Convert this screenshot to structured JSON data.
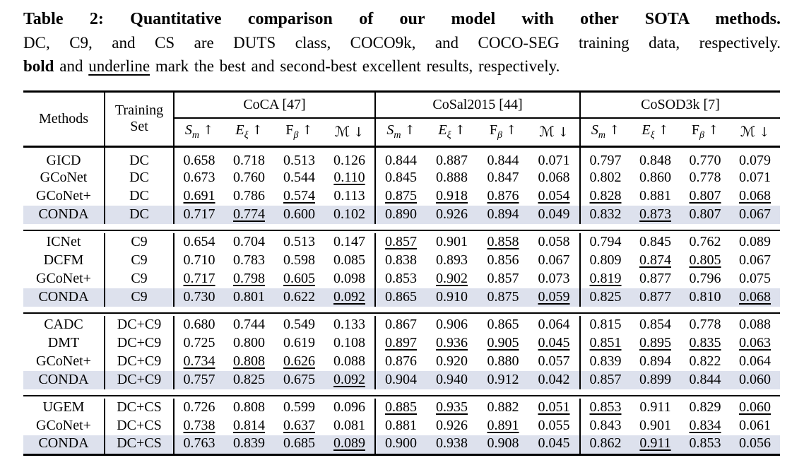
{
  "caption": {
    "line1": "Table 2: Quantitative comparison of our model with other SOTA methods.",
    "line2": "DC, C9, and CS are DUTS class, COCO9k, and COCO-SEG training data, respectively.",
    "line3_parts": [
      {
        "text": "bold",
        "style": "b"
      },
      {
        "text": " and ",
        "style": "n"
      },
      {
        "text": "underline",
        "style": "u"
      },
      {
        "text": " mark the best and second-best excellent results, respectively.",
        "style": "n"
      }
    ]
  },
  "table": {
    "methods_label": "Methods",
    "training_label_lines": [
      "Training",
      "Set"
    ],
    "datasets": [
      "CoCA [47]",
      "CoSal2015 [44]",
      "CoSOD3k [7]"
    ],
    "metrics": [
      {
        "sym": "S",
        "sub": "m",
        "italic": true,
        "arrow": "↑"
      },
      {
        "sym": "E",
        "sub": "ξ",
        "italic": true,
        "arrow": "↑"
      },
      {
        "sym": "F",
        "sub": "β",
        "italic": false,
        "arrow": "↑"
      },
      {
        "sym": "ℳ",
        "sub": "",
        "italic": false,
        "arrow": "↓"
      }
    ],
    "highlight_color": "#dde1ed",
    "groups": [
      {
        "rows": [
          {
            "method": "GICD",
            "training": "DC",
            "emph": false,
            "values": [
              [
                "0.658",
                "n"
              ],
              [
                "0.718",
                "n"
              ],
              [
                "0.513",
                "n"
              ],
              [
                "0.126",
                "n"
              ],
              [
                "0.844",
                "n"
              ],
              [
                "0.887",
                "n"
              ],
              [
                "0.844",
                "n"
              ],
              [
                "0.071",
                "n"
              ],
              [
                "0.797",
                "n"
              ],
              [
                "0.848",
                "n"
              ],
              [
                "0.770",
                "n"
              ],
              [
                "0.079",
                "n"
              ]
            ]
          },
          {
            "method": "GCoNet",
            "training": "DC",
            "emph": false,
            "values": [
              [
                "0.673",
                "n"
              ],
              [
                "0.760",
                "n"
              ],
              [
                "0.544",
                "n"
              ],
              [
                "0.110",
                "u"
              ],
              [
                "0.845",
                "n"
              ],
              [
                "0.888",
                "n"
              ],
              [
                "0.847",
                "n"
              ],
              [
                "0.068",
                "n"
              ],
              [
                "0.802",
                "n"
              ],
              [
                "0.860",
                "n"
              ],
              [
                "0.778",
                "n"
              ],
              [
                "0.071",
                "n"
              ]
            ]
          },
          {
            "method": "GCoNet+",
            "training": "DC",
            "emph": false,
            "values": [
              [
                "0.691",
                "u"
              ],
              [
                "0.786",
                "b"
              ],
              [
                "0.574",
                "u"
              ],
              [
                "0.113",
                "n"
              ],
              [
                "0.875",
                "u"
              ],
              [
                "0.918",
                "u"
              ],
              [
                "0.876",
                "u"
              ],
              [
                "0.054",
                "u"
              ],
              [
                "0.828",
                "u"
              ],
              [
                "0.881",
                "b"
              ],
              [
                "0.807",
                "u"
              ],
              [
                "0.068",
                "u"
              ]
            ]
          },
          {
            "method": "CONDA",
            "training": "DC",
            "emph": true,
            "values": [
              [
                "0.717",
                "b"
              ],
              [
                "0.774",
                "u"
              ],
              [
                "0.600",
                "b"
              ],
              [
                "0.102",
                "b"
              ],
              [
                "0.890",
                "b"
              ],
              [
                "0.926",
                "b"
              ],
              [
                "0.894",
                "b"
              ],
              [
                "0.049",
                "b"
              ],
              [
                "0.832",
                "b"
              ],
              [
                "0.873",
                "u"
              ],
              [
                "0.807",
                "b"
              ],
              [
                "0.067",
                "b"
              ]
            ]
          }
        ]
      },
      {
        "rows": [
          {
            "method": "ICNet",
            "training": "C9",
            "emph": false,
            "values": [
              [
                "0.654",
                "n"
              ],
              [
                "0.704",
                "n"
              ],
              [
                "0.513",
                "n"
              ],
              [
                "0.147",
                "n"
              ],
              [
                "0.857",
                "u"
              ],
              [
                "0.901",
                "n"
              ],
              [
                "0.858",
                "u"
              ],
              [
                "0.058",
                "b"
              ],
              [
                "0.794",
                "n"
              ],
              [
                "0.845",
                "n"
              ],
              [
                "0.762",
                "n"
              ],
              [
                "0.089",
                "n"
              ]
            ]
          },
          {
            "method": "DCFM",
            "training": "C9",
            "emph": false,
            "values": [
              [
                "0.710",
                "n"
              ],
              [
                "0.783",
                "n"
              ],
              [
                "0.598",
                "n"
              ],
              [
                "0.085",
                "b"
              ],
              [
                "0.838",
                "n"
              ],
              [
                "0.893",
                "n"
              ],
              [
                "0.856",
                "n"
              ],
              [
                "0.067",
                "n"
              ],
              [
                "0.809",
                "n"
              ],
              [
                "0.874",
                "u"
              ],
              [
                "0.805",
                "u"
              ],
              [
                "0.067",
                "b"
              ]
            ]
          },
          {
            "method": "GCoNet+",
            "training": "C9",
            "emph": false,
            "values": [
              [
                "0.717",
                "u"
              ],
              [
                "0.798",
                "u"
              ],
              [
                "0.605",
                "u"
              ],
              [
                "0.098",
                "n"
              ],
              [
                "0.853",
                "n"
              ],
              [
                "0.902",
                "u"
              ],
              [
                "0.857",
                "n"
              ],
              [
                "0.073",
                "n"
              ],
              [
                "0.819",
                "u"
              ],
              [
                "0.877",
                "b"
              ],
              [
                "0.796",
                "n"
              ],
              [
                "0.075",
                "n"
              ]
            ]
          },
          {
            "method": "CONDA",
            "training": "C9",
            "emph": true,
            "values": [
              [
                "0.730",
                "b"
              ],
              [
                "0.801",
                "b"
              ],
              [
                "0.622",
                "b"
              ],
              [
                "0.092",
                "u"
              ],
              [
                "0.865",
                "b"
              ],
              [
                "0.910",
                "b"
              ],
              [
                "0.875",
                "b"
              ],
              [
                "0.059",
                "u"
              ],
              [
                "0.825",
                "b"
              ],
              [
                "0.877",
                "b"
              ],
              [
                "0.810",
                "b"
              ],
              [
                "0.068",
                "u"
              ]
            ]
          }
        ]
      },
      {
        "rows": [
          {
            "method": "CADC",
            "training": "DC+C9",
            "emph": false,
            "values": [
              [
                "0.680",
                "n"
              ],
              [
                "0.744",
                "n"
              ],
              [
                "0.549",
                "n"
              ],
              [
                "0.133",
                "n"
              ],
              [
                "0.867",
                "n"
              ],
              [
                "0.906",
                "n"
              ],
              [
                "0.865",
                "n"
              ],
              [
                "0.064",
                "n"
              ],
              [
                "0.815",
                "n"
              ],
              [
                "0.854",
                "n"
              ],
              [
                "0.778",
                "n"
              ],
              [
                "0.088",
                "n"
              ]
            ]
          },
          {
            "method": "DMT",
            "training": "DC+C9",
            "emph": false,
            "values": [
              [
                "0.725",
                "n"
              ],
              [
                "0.800",
                "n"
              ],
              [
                "0.619",
                "n"
              ],
              [
                "0.108",
                "n"
              ],
              [
                "0.897",
                "u"
              ],
              [
                "0.936",
                "u"
              ],
              [
                "0.905",
                "u"
              ],
              [
                "0.045",
                "u"
              ],
              [
                "0.851",
                "u"
              ],
              [
                "0.895",
                "u"
              ],
              [
                "0.835",
                "u"
              ],
              [
                "0.063",
                "u"
              ]
            ]
          },
          {
            "method": "GCoNet+",
            "training": "DC+C9",
            "emph": false,
            "values": [
              [
                "0.734",
                "u"
              ],
              [
                "0.808",
                "u"
              ],
              [
                "0.626",
                "u"
              ],
              [
                "0.088",
                "b"
              ],
              [
                "0.876",
                "n"
              ],
              [
                "0.920",
                "n"
              ],
              [
                "0.880",
                "n"
              ],
              [
                "0.057",
                "n"
              ],
              [
                "0.839",
                "n"
              ],
              [
                "0.894",
                "n"
              ],
              [
                "0.822",
                "n"
              ],
              [
                "0.064",
                "n"
              ]
            ]
          },
          {
            "method": "CONDA",
            "training": "DC+C9",
            "emph": true,
            "values": [
              [
                "0.757",
                "b"
              ],
              [
                "0.825",
                "b"
              ],
              [
                "0.675",
                "b"
              ],
              [
                "0.092",
                "u"
              ],
              [
                "0.904",
                "b"
              ],
              [
                "0.940",
                "b"
              ],
              [
                "0.912",
                "b"
              ],
              [
                "0.042",
                "b"
              ],
              [
                "0.857",
                "b"
              ],
              [
                "0.899",
                "b"
              ],
              [
                "0.844",
                "b"
              ],
              [
                "0.060",
                "b"
              ]
            ]
          }
        ]
      },
      {
        "rows": [
          {
            "method": "UGEM",
            "training": "DC+CS",
            "emph": false,
            "values": [
              [
                "0.726",
                "n"
              ],
              [
                "0.808",
                "n"
              ],
              [
                "0.599",
                "n"
              ],
              [
                "0.096",
                "n"
              ],
              [
                "0.885",
                "u"
              ],
              [
                "0.935",
                "u"
              ],
              [
                "0.882",
                "n"
              ],
              [
                "0.051",
                "u"
              ],
              [
                "0.853",
                "u"
              ],
              [
                "0.911",
                "b"
              ],
              [
                "0.829",
                "n"
              ],
              [
                "0.060",
                "u"
              ]
            ]
          },
          {
            "method": "GCoNet+",
            "training": "DC+CS",
            "emph": false,
            "values": [
              [
                "0.738",
                "u"
              ],
              [
                "0.814",
                "u"
              ],
              [
                "0.637",
                "u"
              ],
              [
                "0.081",
                "b"
              ],
              [
                "0.881",
                "n"
              ],
              [
                "0.926",
                "n"
              ],
              [
                "0.891",
                "u"
              ],
              [
                "0.055",
                "n"
              ],
              [
                "0.843",
                "n"
              ],
              [
                "0.901",
                "n"
              ],
              [
                "0.834",
                "u"
              ],
              [
                "0.061",
                "n"
              ]
            ]
          },
          {
            "method": "CONDA",
            "training": "DC+CS",
            "emph": true,
            "values": [
              [
                "0.763",
                "b"
              ],
              [
                "0.839",
                "b"
              ],
              [
                "0.685",
                "b"
              ],
              [
                "0.089",
                "u"
              ],
              [
                "0.900",
                "b"
              ],
              [
                "0.938",
                "b"
              ],
              [
                "0.908",
                "b"
              ],
              [
                "0.045",
                "b"
              ],
              [
                "0.862",
                "b"
              ],
              [
                "0.911",
                "u"
              ],
              [
                "0.853",
                "b"
              ],
              [
                "0.056",
                "b"
              ]
            ]
          }
        ]
      }
    ]
  }
}
